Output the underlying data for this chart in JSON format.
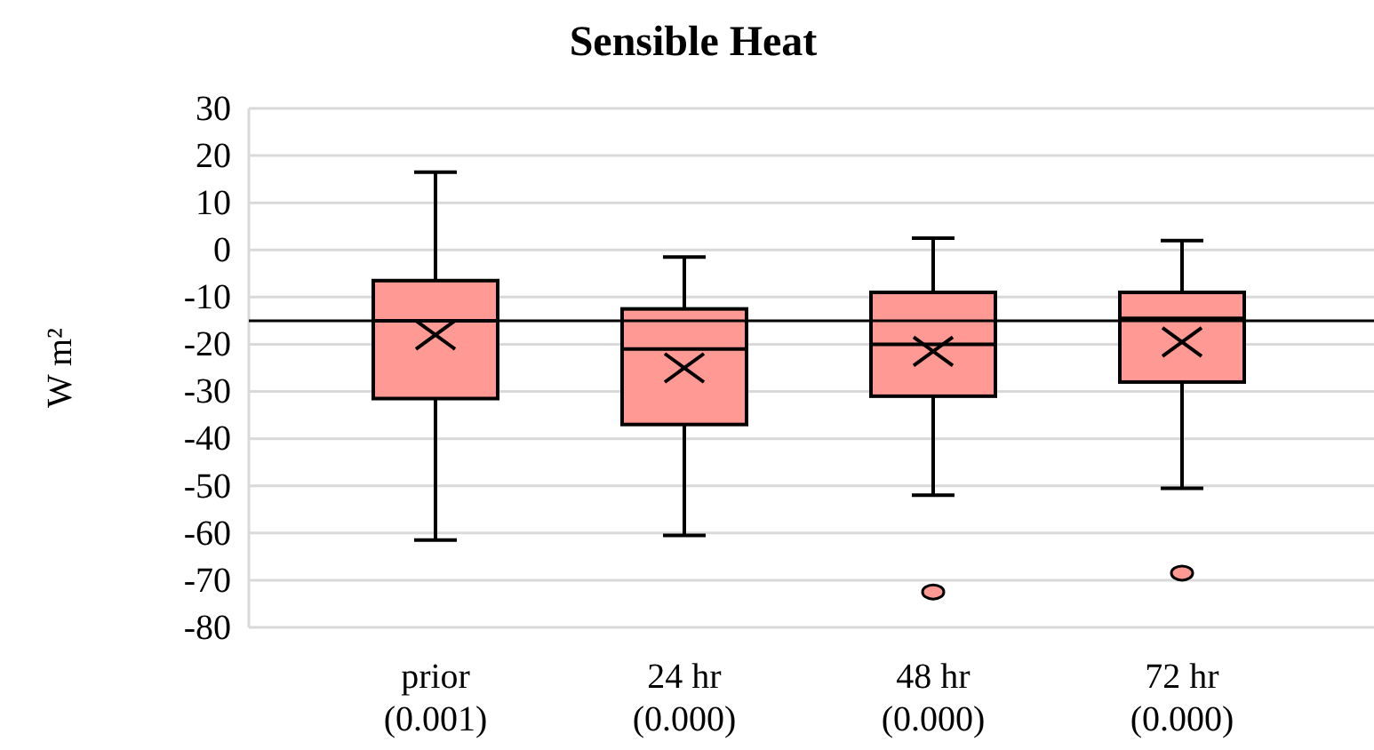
{
  "chart_data": {
    "type": "box",
    "title": "Sensible Heat",
    "ylabel": "W m²",
    "categories": [
      "prior\n(0.001)",
      "24 hr\n(0.000)",
      "48 hr\n(0.000)",
      "72 hr\n(0.000)"
    ],
    "color": "#ff9994",
    "boxes": [
      {
        "low": -61.5,
        "q1": -31.5,
        "median": -15,
        "q3": -6.5,
        "high": 16.5,
        "mean": -18
      },
      {
        "low": -60.5,
        "q1": -37,
        "median": -21,
        "q3": -12.5,
        "high": -1.5,
        "mean": -25
      },
      {
        "low": -52,
        "q1": -31,
        "median": -20,
        "q3": -9,
        "high": 2.5,
        "mean": -21.5,
        "outliers": [
          -72.5
        ]
      },
      {
        "low": -50.5,
        "q1": -28,
        "median": -14.5,
        "q3": -9,
        "high": 2,
        "mean": -19.5,
        "outliers": [
          -68.5
        ]
      }
    ],
    "ylim": [
      -80,
      30
    ],
    "yticks": [
      -80,
      -70,
      -60,
      -50,
      -40,
      -30,
      -20,
      -10,
      0,
      10,
      20,
      30
    ],
    "grid": "y",
    "ref_lines": [
      {
        "axis": "y",
        "value": -15,
        "color": "#000000"
      }
    ]
  }
}
